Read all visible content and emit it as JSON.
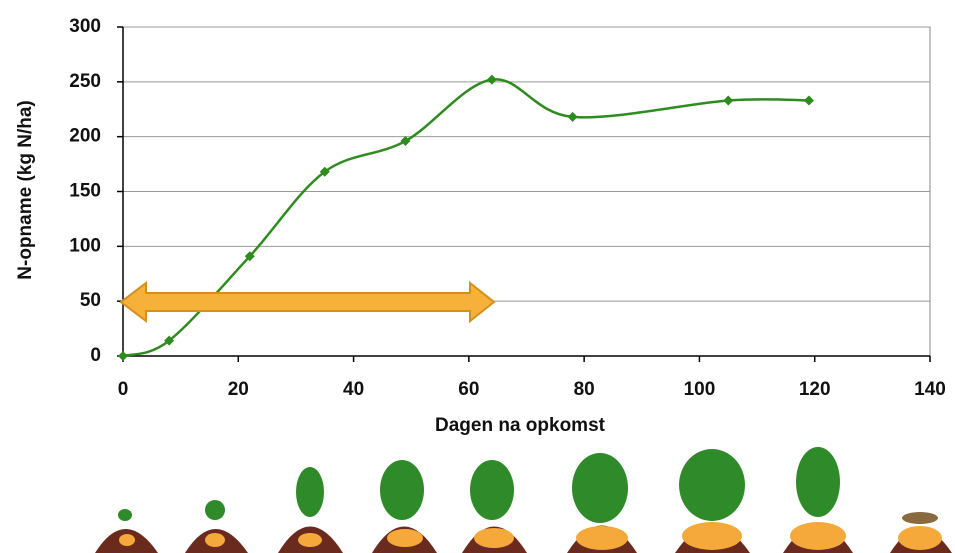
{
  "chart_data": {
    "type": "line",
    "x_label": "Dagen na opkomst",
    "y_label": "N-opname (kg N/ha)",
    "series": [
      {
        "color": "#2e8b1e",
        "x": [
          0,
          8,
          22,
          35,
          49,
          64,
          78,
          105,
          119
        ],
        "values": [
          0,
          14,
          91,
          168,
          196,
          252,
          218,
          233,
          233
        ]
      }
    ],
    "xlim": [
      0,
      140
    ],
    "xticks": [
      0,
      20,
      40,
      60,
      80,
      100,
      120,
      140
    ],
    "ylim": [
      0,
      300
    ],
    "yticks": [
      0,
      50,
      100,
      150,
      200,
      250,
      300
    ],
    "grid": true
  }
}
